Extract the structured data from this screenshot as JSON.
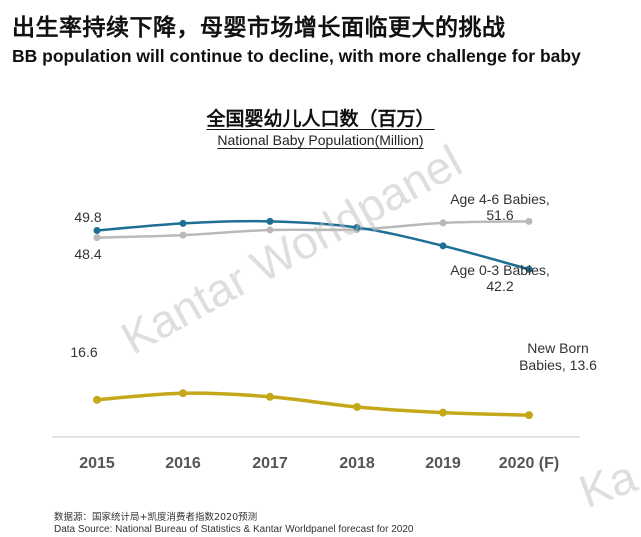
{
  "headline": {
    "cn": "出生率持续下降，母婴市场增长面临更大的挑战",
    "en": "BB population will continue to decline, with more challenge for baby"
  },
  "chart_data": {
    "type": "line",
    "title": "全国婴幼儿人口数（百万）",
    "subtitle": "National Baby Population(Million)",
    "categories": [
      "2015",
      "2016",
      "2017",
      "2018",
      "2019",
      "2020 (F)"
    ],
    "ylim": [
      0,
      60
    ],
    "grid": false,
    "series": [
      {
        "name": "Age 0-3 Babies",
        "color": "#1f6e94",
        "values": [
          49.8,
          51.2,
          51.6,
          50.4,
          46.8,
          42.2
        ],
        "start_label": "49.8",
        "end_label_lines": [
          "Age 0-3 Babies,",
          "42.2"
        ]
      },
      {
        "name": "Age 4-6 Babies",
        "color": "#b9b9b9",
        "values": [
          48.4,
          48.9,
          49.9,
          50.0,
          51.3,
          51.6
        ],
        "start_label": "48.4",
        "end_label_lines": [
          "Age 4-6 Babies,",
          "51.6"
        ]
      },
      {
        "name": "New Born Babies",
        "color": "#c5a81a",
        "values": [
          16.6,
          17.9,
          17.2,
          15.2,
          14.1,
          13.6
        ],
        "start_label": "16.6",
        "end_label_lines": [
          "New Born",
          "Babies, 13.6"
        ]
      }
    ]
  },
  "source": {
    "cn": "数据源：国家统计局+凯度消费者指数2020预测",
    "en": "Data Source: National Bureau of Statistics & Kantar Worldpanel forecast for 2020"
  },
  "watermark": {
    "text": "Kantar Worldpanel",
    "corner_text": "Ka"
  }
}
